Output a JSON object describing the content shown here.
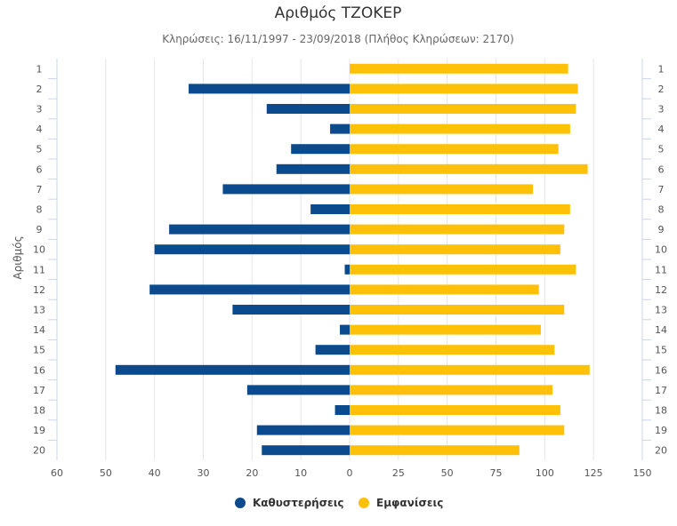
{
  "chart_data": {
    "type": "bar",
    "orientation": "horizontal",
    "layout": "butterfly",
    "title": "Αριθμός ΤΖΟΚΕΡ",
    "subtitle": "Κληρώσεις: 16/11/1997 - 23/09/2018 (Πλήθος Κληρώσεων: 2170)",
    "ylabel": "Αριθμός",
    "categories": [
      "1",
      "2",
      "3",
      "4",
      "5",
      "6",
      "7",
      "8",
      "9",
      "10",
      "11",
      "12",
      "13",
      "14",
      "15",
      "16",
      "17",
      "18",
      "19",
      "20"
    ],
    "series": [
      {
        "name": "Καθυστερήσεις",
        "color": "#0b4a8c",
        "side": "left",
        "values": [
          0,
          33,
          17,
          4,
          12,
          15,
          26,
          8,
          37,
          40,
          1,
          41,
          24,
          2,
          7,
          48,
          21,
          3,
          19,
          18
        ]
      },
      {
        "name": "Εμφανίσεις",
        "color": "#ffc107",
        "side": "right",
        "values": [
          112,
          117,
          116,
          113,
          107,
          122,
          94,
          113,
          110,
          108,
          116,
          97,
          110,
          98,
          105,
          123,
          104,
          108,
          110,
          87
        ]
      }
    ],
    "left_axis": {
      "range": [
        60,
        0
      ],
      "ticks": [
        "60",
        "50",
        "40",
        "30",
        "20",
        "10"
      ]
    },
    "right_axis": {
      "range": [
        0,
        150
      ],
      "ticks": [
        "0",
        "25",
        "50",
        "75",
        "100",
        "125",
        "150"
      ]
    },
    "grid": true,
    "legend_position": "bottom"
  }
}
